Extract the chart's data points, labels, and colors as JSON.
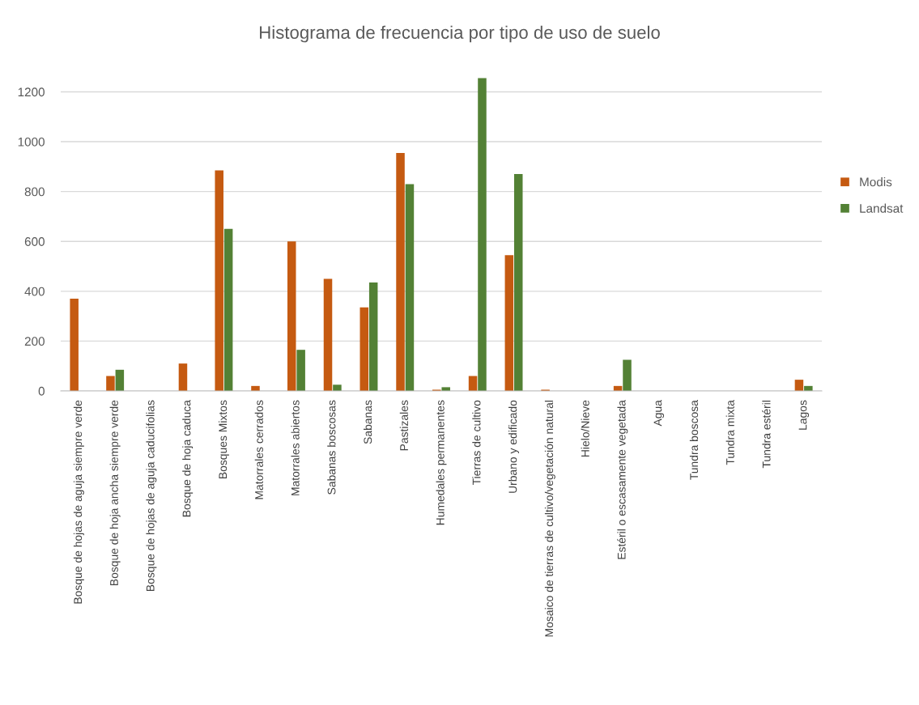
{
  "chart_data": {
    "type": "bar",
    "title": "Histograma de frecuencia por tipo de uso de suelo",
    "categories": [
      "Bosque de hojas de aguja siempre verde",
      "Bosque de hoja ancha siempre verde",
      "Bosque de hojas de aguja caducifolias",
      "Bosque de hoja caduca",
      "Bosques Mixtos",
      "Matorrales cerrados",
      "Matorrales abiertos",
      "Sabanas boscosas",
      "Sabanas",
      "Pastizales",
      "Humedales permanentes",
      "Tierras de cultivo",
      "Urbano y edificado",
      "Mosaico de tierras de cultivo/vegetación natural",
      "Hielo/Nieve",
      "Estéril o escasamente vegetada",
      "Agua",
      "Tundra boscosa",
      "Tundra mixta",
      "Tundra estéril",
      "Lagos"
    ],
    "series": [
      {
        "name": "Modis",
        "color": "#c55a11",
        "values": [
          370,
          60,
          0,
          110,
          885,
          20,
          600,
          450,
          335,
          955,
          5,
          60,
          545,
          5,
          0,
          20,
          0,
          0,
          0,
          0,
          45
        ]
      },
      {
        "name": "Landsat",
        "color": "#538135",
        "values": [
          0,
          85,
          0,
          0,
          650,
          0,
          165,
          25,
          435,
          830,
          15,
          1255,
          870,
          0,
          0,
          125,
          0,
          0,
          0,
          0,
          20
        ]
      }
    ],
    "ylim": [
      0,
      1260
    ],
    "yticks": [
      0,
      200,
      400,
      600,
      800,
      1000,
      1200
    ],
    "grid": "y",
    "legend": "right"
  }
}
